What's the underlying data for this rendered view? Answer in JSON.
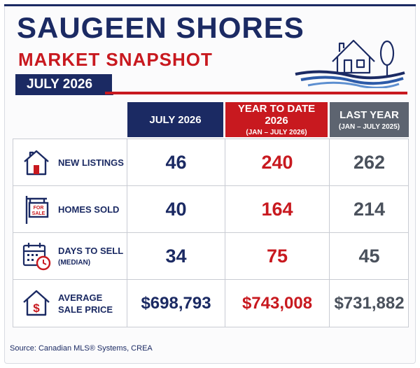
{
  "header": {
    "title": "SAUGEEN SHORES",
    "subtitle": "MARKET SNAPSHOT",
    "month": "JULY 2026"
  },
  "columns": [
    {
      "title": "JULY 2026",
      "sub": ""
    },
    {
      "title": "YEAR TO DATE 2026",
      "sub": "(JAN – JULY 2026)"
    },
    {
      "title": "LAST YEAR",
      "sub": "(JAN – JULY 2025)"
    }
  ],
  "rows": [
    {
      "label": "NEW LISTINGS",
      "sublabel": "",
      "icon": "house-icon",
      "values": [
        "46",
        "240",
        "262"
      ]
    },
    {
      "label": "HOMES SOLD",
      "sublabel": "",
      "icon": "for-sale-sign-icon",
      "sign_text": [
        "FOR",
        "SALE"
      ],
      "values": [
        "40",
        "164",
        "214"
      ]
    },
    {
      "label": "DAYS TO SELL",
      "sublabel": "(MEDIAN)",
      "icon": "calendar-clock-icon",
      "values": [
        "34",
        "75",
        "45"
      ]
    },
    {
      "label": "AVERAGE",
      "sublabel": "SALE PRICE",
      "icon": "house-dollar-icon",
      "values": [
        "$698,793",
        "$743,008",
        "$731,882"
      ]
    }
  ],
  "source": "Source: Canadian MLS® Systems, CREA",
  "colors": {
    "navy": "#1b2a63",
    "red": "#c8191f",
    "gray": "#5d6470"
  }
}
